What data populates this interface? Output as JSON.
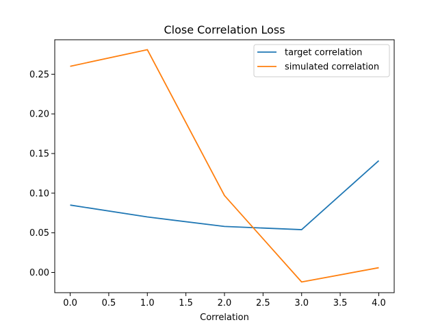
{
  "chart_data": {
    "type": "line",
    "title": "Close Correlation Loss",
    "xlabel": "Correlation",
    "ylabel": "",
    "x": [
      0,
      1,
      2,
      3,
      4
    ],
    "xlim": [
      -0.2,
      4.2
    ],
    "ylim": [
      -0.0255,
      0.2935
    ],
    "xticks": [
      0.0,
      0.5,
      1.0,
      1.5,
      2.0,
      2.5,
      3.0,
      3.5,
      4.0
    ],
    "xtick_labels": [
      "0.0",
      "0.5",
      "1.0",
      "1.5",
      "2.0",
      "2.5",
      "3.0",
      "3.5",
      "4.0"
    ],
    "yticks": [
      0.0,
      0.05,
      0.1,
      0.15,
      0.2,
      0.25
    ],
    "ytick_labels": [
      "0.00",
      "0.05",
      "0.10",
      "0.15",
      "0.20",
      "0.25"
    ],
    "grid": false,
    "legend_position": "top-right",
    "series": [
      {
        "name": "target correlation",
        "color": "#1f77b4",
        "values": [
          0.085,
          0.07,
          0.058,
          0.054,
          0.141
        ]
      },
      {
        "name": "simulated correlation",
        "color": "#ff7f0e",
        "values": [
          0.26,
          0.281,
          0.097,
          -0.012,
          0.006
        ]
      }
    ]
  }
}
